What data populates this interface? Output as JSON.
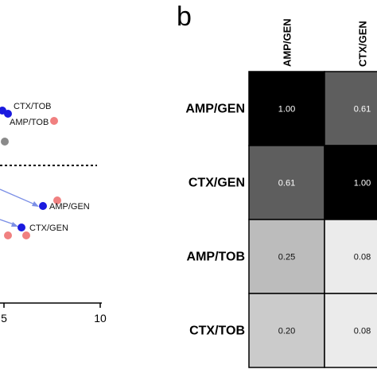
{
  "chart_data": [
    {
      "type": "scatter",
      "xlim_visible": [
        5,
        10
      ],
      "x_ticks": [
        "5",
        "10"
      ],
      "reference_line": "dashed horizontal",
      "points": [
        {
          "label": "CTX/TOB",
          "color": "#1a1adf"
        },
        {
          "label": "AMP/TOB",
          "color": "#1a1adf"
        },
        {
          "label": "",
          "color": "#8a8a8a"
        },
        {
          "label": "AMP/GEN",
          "color": "#1a1adf"
        },
        {
          "label": "CTX/GEN",
          "color": "#1a1adf"
        }
      ],
      "secondary_points_color": "#f08080",
      "arrow_color": "#7b8fe6"
    },
    {
      "type": "heatmap",
      "panel_label": "b",
      "rows": [
        "AMP/GEN",
        "CTX/GEN",
        "AMP/TOB",
        "CTX/TOB"
      ],
      "columns": [
        "AMP/GEN",
        "CTX/GEN"
      ],
      "values": [
        [
          1.0,
          0.61
        ],
        [
          0.61,
          1.0
        ],
        [
          0.25,
          0.08
        ],
        [
          0.2,
          0.08
        ]
      ],
      "value_labels": [
        [
          "1.00",
          "0.61"
        ],
        [
          "0.61",
          "1.00"
        ],
        [
          "0.25",
          "0.08"
        ],
        [
          "0.20",
          "0.08"
        ]
      ],
      "colors": [
        [
          "#000000",
          "#5e5e5e"
        ],
        [
          "#5e5e5e",
          "#000000"
        ],
        [
          "#bcbcbc",
          "#ebebeb"
        ],
        [
          "#cbcbcb",
          "#ebebeb"
        ]
      ]
    }
  ]
}
